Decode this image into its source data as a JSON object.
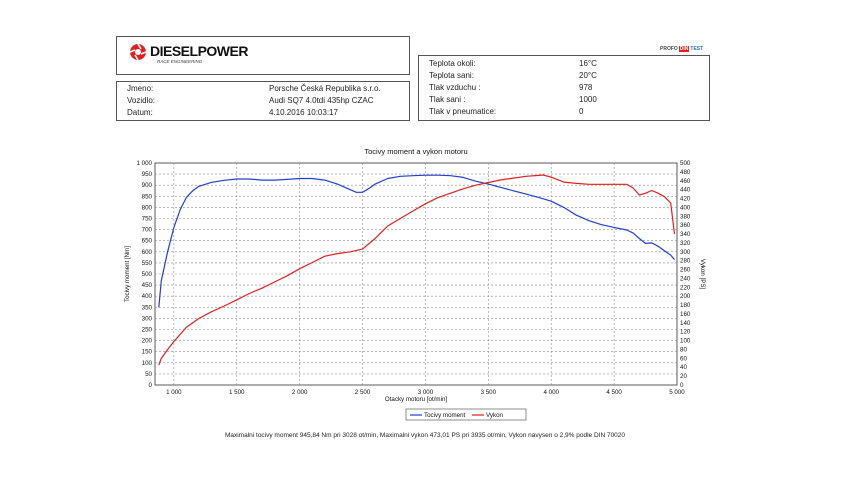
{
  "header": {
    "brand": "DIESELPOWER",
    "tagline": "RACE ENGINEERING",
    "badge_left": "PROFO",
    "badge_mid": "DIN",
    "badge_right": "TEST"
  },
  "vehicle_info": [
    {
      "label": "Jmeno:",
      "value": "Porsche Česká Republika s.r.o."
    },
    {
      "label": "Vozidlo:",
      "value": "Audi SQ7 4.0tdi 435hp CZAC"
    },
    {
      "label": "Datum:",
      "value": "4.10.2016 10:03:17"
    }
  ],
  "conditions": [
    {
      "label": "Teplota okoli:",
      "value": "16°C"
    },
    {
      "label": "Teplota sani:",
      "value": "20°C"
    },
    {
      "label": "Tlak vzduchu :",
      "value": "978"
    },
    {
      "label": "Tlak sani :",
      "value": "1000"
    },
    {
      "label": "Tlak v pneumatice:",
      "value": "0"
    }
  ],
  "colors": {
    "torque": "#1f3fd0",
    "power": "#e02020",
    "grid": "#8a8a8a"
  },
  "chart_data": {
    "type": "line",
    "title": "Tocivy moment a vykon motoru",
    "xlabel": "Otacky motoru [ot/min]",
    "ylabel_left": "Tocivy moment [Nm]",
    "ylabel_right": "Vykon [PS]",
    "xlim": [
      850,
      5000
    ],
    "ylim_left": [
      0,
      1000
    ],
    "ylim_right": [
      0,
      500
    ],
    "x_ticks": [
      1000,
      1500,
      2000,
      2500,
      3000,
      3500,
      4000,
      4500,
      5000
    ],
    "x_tick_labels": [
      "1 000",
      "1 500",
      "2 000",
      "2 500",
      "3 000",
      "3 500",
      "4 000",
      "4 500",
      "5 000"
    ],
    "y_left_ticks": [
      0,
      50,
      100,
      150,
      200,
      250,
      300,
      350,
      400,
      450,
      500,
      550,
      600,
      650,
      700,
      750,
      800,
      850,
      900,
      950,
      1000
    ],
    "y_left_tick_labels": [
      "0",
      "50",
      "100",
      "150",
      "200",
      "250",
      "300",
      "350",
      "400",
      "450",
      "500",
      "550",
      "600",
      "650",
      "700",
      "750",
      "800",
      "850",
      "900",
      "950",
      "1 000"
    ],
    "y_right_ticks": [
      0,
      20,
      40,
      60,
      80,
      100,
      120,
      140,
      160,
      180,
      200,
      220,
      240,
      260,
      280,
      300,
      320,
      340,
      360,
      380,
      400,
      420,
      440,
      460,
      480,
      500
    ],
    "grid": true,
    "legend": "bottom-center",
    "series": [
      {
        "name": "Tocivy moment",
        "axis": "left",
        "x": [
          880,
          900,
          950,
          1000,
          1050,
          1100,
          1150,
          1200,
          1300,
          1400,
          1500,
          1600,
          1700,
          1800,
          1900,
          2000,
          2100,
          2200,
          2300,
          2400,
          2450,
          2500,
          2550,
          2600,
          2700,
          2800,
          2900,
          3000,
          3100,
          3200,
          3300,
          3400,
          3500,
          3600,
          3700,
          3800,
          3900,
          4000,
          4100,
          4200,
          4300,
          4400,
          4500,
          4600,
          4650,
          4700,
          4750,
          4800,
          4850,
          4900,
          4950,
          4980
        ],
        "values": [
          350,
          470,
          600,
          710,
          790,
          845,
          875,
          895,
          913,
          922,
          928,
          928,
          923,
          923,
          926,
          930,
          930,
          923,
          905,
          880,
          868,
          868,
          885,
          905,
          930,
          940,
          943,
          945,
          945,
          943,
          935,
          918,
          905,
          890,
          875,
          860,
          845,
          828,
          800,
          765,
          740,
          722,
          710,
          698,
          685,
          660,
          638,
          640,
          625,
          605,
          585,
          565
        ]
      },
      {
        "name": "Vykon",
        "axis": "right",
        "x": [
          880,
          900,
          950,
          1000,
          1100,
          1200,
          1300,
          1400,
          1500,
          1600,
          1700,
          1800,
          1900,
          2000,
          2100,
          2200,
          2300,
          2400,
          2500,
          2600,
          2700,
          2800,
          2900,
          3000,
          3100,
          3200,
          3300,
          3400,
          3500,
          3600,
          3700,
          3800,
          3900,
          3935,
          4000,
          4100,
          4200,
          4300,
          4400,
          4500,
          4600,
          4650,
          4700,
          4750,
          4800,
          4850,
          4900,
          4950,
          4980
        ],
        "values": [
          45,
          60,
          80,
          98,
          130,
          150,
          165,
          178,
          192,
          206,
          218,
          232,
          246,
          262,
          276,
          290,
          296,
          300,
          306,
          330,
          358,
          375,
          392,
          408,
          422,
          432,
          442,
          450,
          456,
          462,
          466,
          470,
          472,
          473,
          468,
          457,
          454,
          452,
          452,
          452,
          452,
          444,
          428,
          432,
          438,
          432,
          424,
          410,
          340
        ]
      }
    ]
  },
  "footer": "Maximalni tocivy moment 945,84 Nm pri 3028 ot/min,  Maximalni vykon 473,01 PS pri 3935 ot/min,  Vykon navysen o 2,9% podle DIN 70020"
}
